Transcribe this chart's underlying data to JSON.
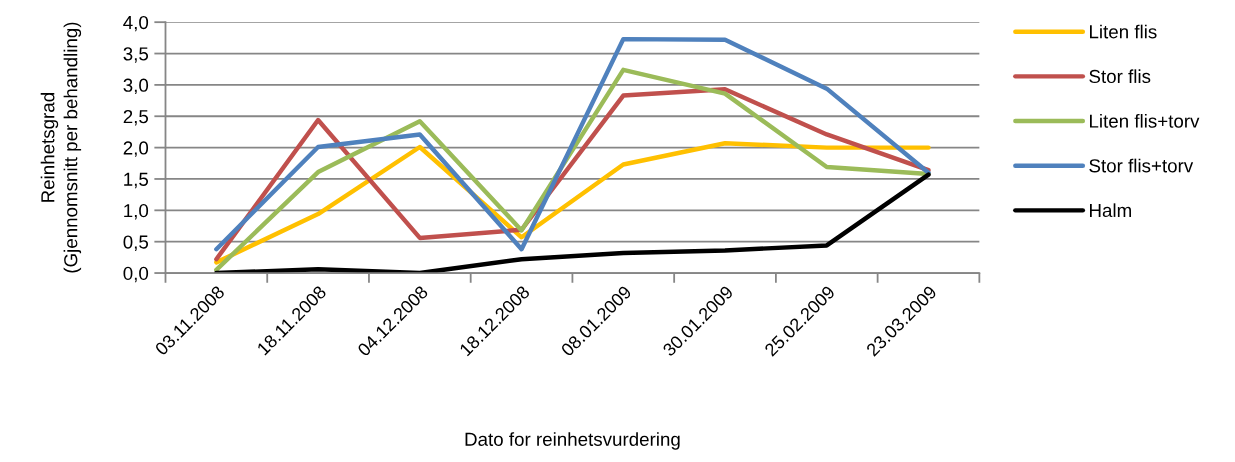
{
  "chart_data": {
    "type": "line",
    "xlabel": "Dato for reinhetsvurdering",
    "ylabel": "Reinhetsgrad\n(Gjennomsnitt per behandling)",
    "categories": [
      "03.11.2008",
      "18.11.2008",
      "04.12.2008",
      "18.12.2008",
      "08.01.2009",
      "30.01.2009",
      "25.02.2009",
      "23.03.2009"
    ],
    "series": [
      {
        "name": "Liten flis",
        "color": "#ffc000",
        "values": [
          0.17,
          0.94,
          2.01,
          0.57,
          1.73,
          2.07,
          2.0,
          2.0
        ]
      },
      {
        "name": "Stor flis",
        "color": "#c0504d",
        "values": [
          0.22,
          2.44,
          0.56,
          0.69,
          2.83,
          2.93,
          2.21,
          1.64
        ]
      },
      {
        "name": "Liten flis+torv",
        "color": "#9bbb59",
        "values": [
          0.05,
          1.61,
          2.42,
          0.68,
          3.24,
          2.86,
          1.69,
          1.58
        ]
      },
      {
        "name": "Stor flis+torv",
        "color": "#4f81bd",
        "values": [
          0.38,
          2.01,
          2.21,
          0.38,
          3.73,
          3.72,
          2.94,
          1.6
        ]
      },
      {
        "name": "Halm",
        "color": "#000000",
        "values": [
          0.0,
          0.06,
          0.0,
          0.22,
          0.32,
          0.36,
          0.44,
          1.57
        ]
      }
    ],
    "ylim": [
      0,
      4
    ],
    "yticks": [
      {
        "value": 0,
        "label": "0,0"
      },
      {
        "value": 0.5,
        "label": "0,5"
      },
      {
        "value": 1,
        "label": "1,0"
      },
      {
        "value": 1.5,
        "label": "1,5"
      },
      {
        "value": 2,
        "label": "2,0"
      },
      {
        "value": 2.5,
        "label": "2,5"
      },
      {
        "value": 3,
        "label": "3,0"
      },
      {
        "value": 3.5,
        "label": "3,5"
      },
      {
        "value": 4,
        "label": "4,0"
      }
    ],
    "grid": "y",
    "legend": "right",
    "marker": "none",
    "line_style": "solid"
  }
}
